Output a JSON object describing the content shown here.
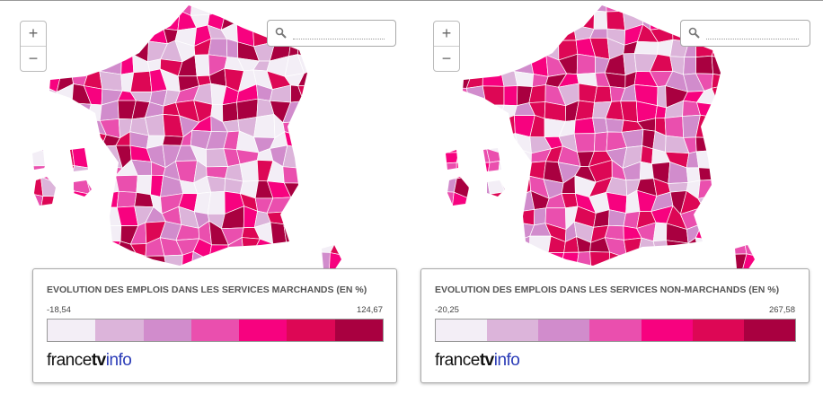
{
  "panels": [
    {
      "zoom_in": "+",
      "zoom_out": "−",
      "legend": {
        "title": "EVOLUTION DES EMPLOIS DANS LES SERVICES MARCHANDS (EN %)",
        "min": "-18,54",
        "max": "124,67",
        "colors": [
          "#f3eef6",
          "#dcb4da",
          "#d18ccc",
          "#ea4fae",
          "#f7027f",
          "#dd0755",
          "#a90040"
        ]
      },
      "brand": {
        "france": "france",
        "tv": "tv",
        "info": "info"
      }
    },
    {
      "zoom_in": "+",
      "zoom_out": "−",
      "legend": {
        "title": "EVOLUTION DES EMPLOIS DANS LES SERVICES NON-MARCHANDS (EN %)",
        "min": "-20,25",
        "max": "267,58",
        "colors": [
          "#f3eef6",
          "#dcb4da",
          "#d18ccc",
          "#ea4fae",
          "#f7027f",
          "#dd0755",
          "#a90040"
        ]
      },
      "brand": {
        "france": "france",
        "tv": "tv",
        "info": "info"
      }
    }
  ]
}
